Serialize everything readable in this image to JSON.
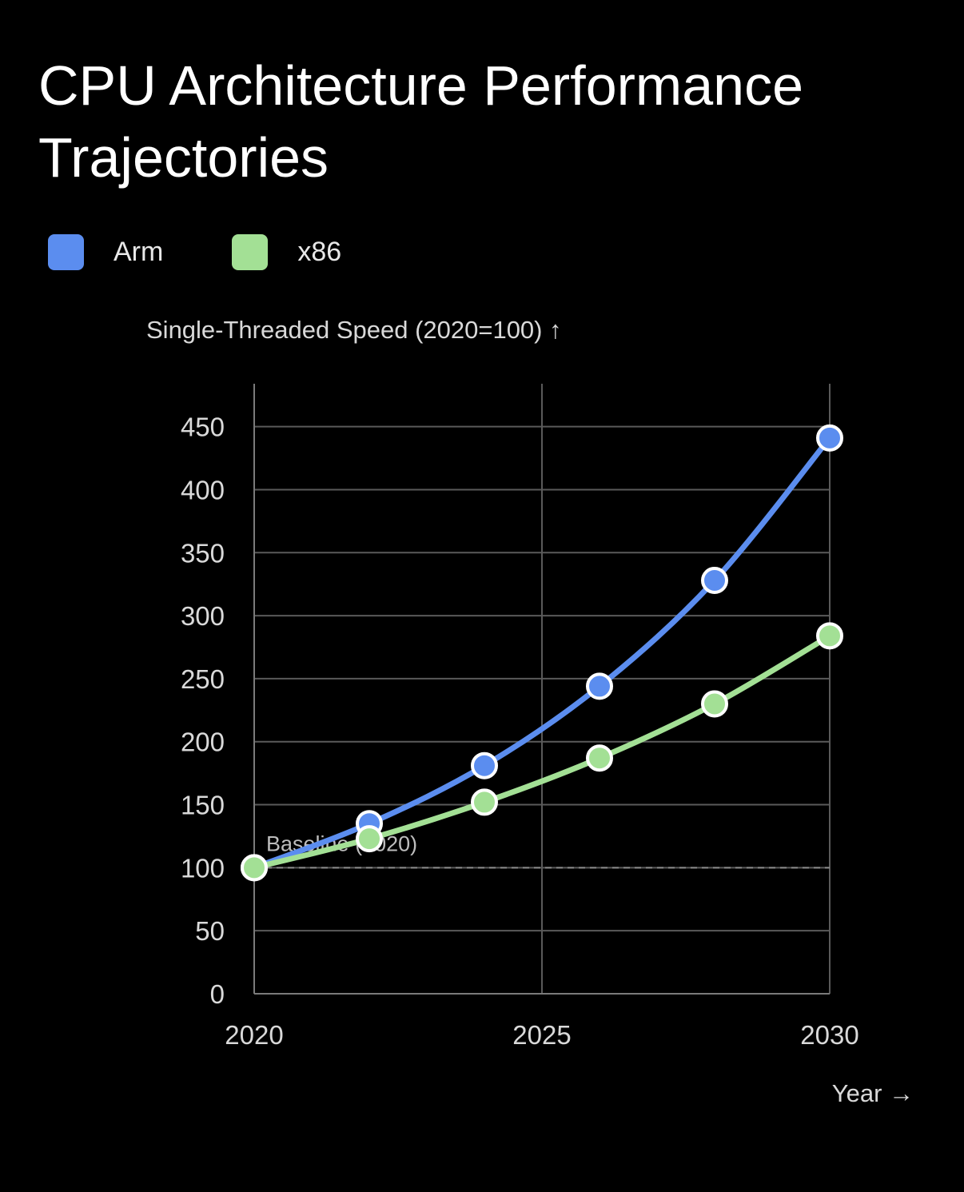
{
  "chart_data": {
    "type": "line",
    "title": "CPU Architecture Performance Trajectories",
    "xlabel": "Year →",
    "ylabel": "Single-Threaded Speed (2020=100) ↑",
    "x": [
      2020,
      2022,
      2024,
      2026,
      2028,
      2030
    ],
    "xlim": [
      2020,
      2030
    ],
    "ylim": [
      0,
      480
    ],
    "xticks": [
      2020,
      2025,
      2030
    ],
    "yticks": [
      0,
      50,
      100,
      150,
      200,
      250,
      300,
      350,
      400,
      450
    ],
    "grid": true,
    "legend_position": "top-left",
    "series": [
      {
        "name": "Arm",
        "color": "#5b8def",
        "values": [
          100,
          135,
          181,
          244,
          328,
          441
        ]
      },
      {
        "name": "x86",
        "color": "#a3e095",
        "values": [
          100,
          123,
          152,
          187,
          230,
          284
        ]
      }
    ],
    "annotations": [
      {
        "text": "Baseline (2020)",
        "y": 100,
        "style": "dashed-line"
      }
    ]
  },
  "colors": {
    "background": "#000000",
    "grid": "#5a5a5a",
    "text": "#d9d9d9",
    "baseline": "#8a8a8a"
  }
}
